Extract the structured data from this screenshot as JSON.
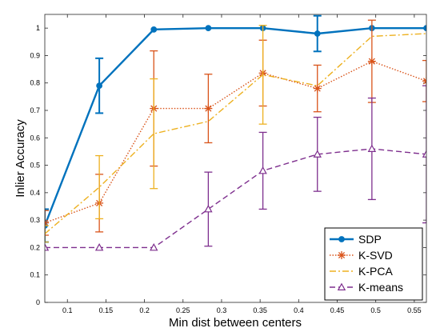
{
  "chart_data": {
    "type": "line",
    "title": "",
    "xlabel": "Min dist between centers",
    "ylabel": "Inlier Accuracy",
    "xlim": [
      0.0707,
      0.5657
    ],
    "ylim": [
      0,
      1.05
    ],
    "xticks": [
      0.1,
      0.15,
      0.2,
      0.25,
      0.3,
      0.35,
      0.4,
      0.45,
      0.5,
      0.55
    ],
    "xtick_labels": [
      "0.1",
      "0.15",
      "0.2",
      "0.25",
      "0.3",
      "0.35",
      "0.4",
      "0.45",
      "0.5",
      "0.55"
    ],
    "yticks": [
      0,
      0.1,
      0.2,
      0.3,
      0.4,
      0.5,
      0.6,
      0.7,
      0.8,
      0.9,
      1
    ],
    "ytick_labels": [
      "0",
      "0.1",
      "0.2",
      "0.3",
      "0.4",
      "0.5",
      "0.6",
      "0.7",
      "0.8",
      "0.9",
      "1"
    ],
    "grid": false,
    "legend_position": "bottom-right",
    "x": [
      0.0707,
      0.1414,
      0.2121,
      0.2828,
      0.3536,
      0.4243,
      0.495,
      0.5657
    ],
    "series": [
      {
        "name": "SDP",
        "color": "#0072BD",
        "marker": "star",
        "linestyle": "solid",
        "values": [
          0.28,
          0.79,
          0.995,
          1.0,
          1.0,
          0.98,
          1.0,
          1.0
        ],
        "error": [
          0.06,
          0.1,
          0.0,
          0.0,
          0.0,
          0.065,
          0.0,
          0.0
        ]
      },
      {
        "name": "K-SVD",
        "color": "#D95319",
        "marker": "asterisk",
        "linestyle": "dotted",
        "values": [
          0.29,
          0.362,
          0.707,
          0.707,
          0.836,
          0.78,
          0.879,
          0.807
        ],
        "error": [
          0.045,
          0.105,
          0.21,
          0.125,
          0.12,
          0.085,
          0.15,
          0.075
        ]
      },
      {
        "name": "K-PCA",
        "color": "#EDB120",
        "marker": "none",
        "linestyle": "dashdot",
        "values": [
          0.25,
          0.42,
          0.615,
          0.66,
          0.83,
          0.79,
          0.97,
          0.98
        ],
        "error": [
          0.03,
          0.115,
          0.2,
          0.0,
          0.18,
          0.0,
          0.0,
          0.0
        ]
      },
      {
        "name": "K-means",
        "color": "#7E2F8E",
        "marker": "triangle",
        "linestyle": "dashed",
        "values": [
          0.2,
          0.2,
          0.2,
          0.34,
          0.48,
          0.54,
          0.56,
          0.54
        ],
        "error": [
          0.0,
          0.0,
          0.0,
          0.135,
          0.14,
          0.135,
          0.185,
          0.25
        ]
      }
    ]
  }
}
